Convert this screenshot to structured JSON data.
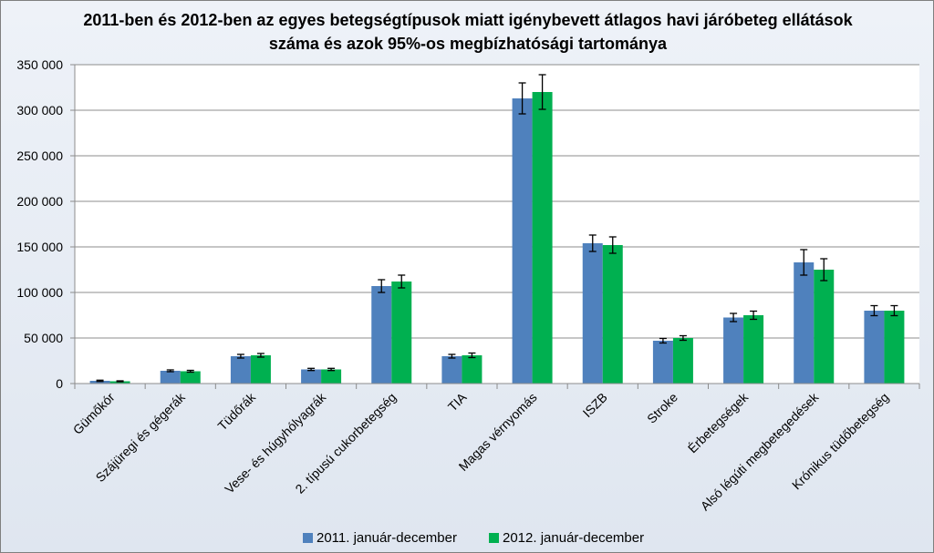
{
  "chart_data": {
    "type": "bar",
    "title": "2011-ben és 2012-ben az egyes betegségtípusok miatt igénybevett átlagos havi járóbeteg ellátások",
    "subtitle": "száma és azok 95%-os megbízhatósági tartománya",
    "xlabel": "",
    "ylabel": "",
    "ylim": [
      0,
      350000
    ],
    "yticks": [
      0,
      50000,
      100000,
      150000,
      200000,
      250000,
      300000,
      350000
    ],
    "ytick_labels": [
      "0",
      "50 000",
      "100 000",
      "150 000",
      "200 000",
      "250 000",
      "300 000",
      "350 000"
    ],
    "grid": true,
    "legend_position": "bottom",
    "categories": [
      "Gümőkór",
      "Szájüregi és gégerák",
      "Tüdőrák",
      "Vese- és húgyhólyagrák",
      "2. típusú cukorbetegség",
      "TIA",
      "Magas vérnyomás",
      "ISZB",
      "Stroke",
      "Érbetegségek",
      "Alsó légúti megbetegedések",
      "Krónikus tüdőbetegség"
    ],
    "series": [
      {
        "name": "2011. január-december",
        "color": "#4f81bd",
        "values": [
          3000,
          14000,
          30000,
          15500,
          107000,
          30000,
          313000,
          154000,
          47000,
          72500,
          133000,
          80000
        ],
        "error": [
          700,
          1000,
          2000,
          1200,
          7000,
          2000,
          17000,
          9000,
          2500,
          4500,
          14000,
          5500
        ]
      },
      {
        "name": "2012. január-december",
        "color": "#00b050",
        "values": [
          2500,
          13500,
          31000,
          15500,
          112000,
          31000,
          320000,
          152000,
          50000,
          75000,
          125000,
          80000
        ],
        "error": [
          500,
          1000,
          2000,
          1200,
          7000,
          2500,
          19000,
          9000,
          2500,
          4500,
          12000,
          5500
        ]
      }
    ]
  }
}
